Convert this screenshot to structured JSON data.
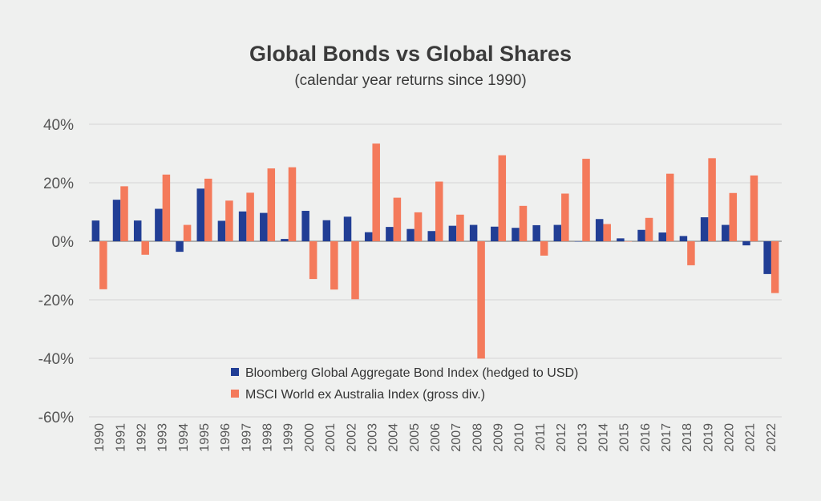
{
  "title": "Global Bonds vs Global Shares",
  "subtitle": "(calendar year returns since 1990)",
  "colors": {
    "background": "#eff0ef",
    "bond": "#213e95",
    "shares": "#f47a5b",
    "grid": "#d4d4d4",
    "text": "#555555"
  },
  "chart_data": {
    "type": "bar",
    "title": "Global Bonds vs Global Shares",
    "subtitle": "(calendar year returns since 1990)",
    "categories": [
      "1990",
      "1991",
      "1992",
      "1993",
      "1994",
      "1995",
      "1996",
      "1997",
      "1998",
      "1999",
      "2000",
      "2001",
      "2002",
      "2003",
      "2004",
      "2005",
      "2006",
      "2007",
      "2008",
      "2009",
      "2010",
      "2011",
      "2012",
      "2013",
      "2014",
      "2015",
      "2016",
      "2017",
      "2018",
      "2019",
      "2020",
      "2021",
      "2022"
    ],
    "series": [
      {
        "name": "Bloomberg Global Aggregate Bond Index (hedged to USD)",
        "color": "#213e95",
        "values": [
          7.1,
          14.2,
          7.1,
          11.1,
          -3.6,
          18.0,
          7.0,
          10.2,
          9.7,
          0.8,
          10.4,
          7.2,
          8.4,
          3.1,
          4.9,
          4.2,
          3.5,
          5.3,
          5.6,
          5.0,
          4.6,
          5.5,
          5.6,
          -0.1,
          7.6,
          1.0,
          3.9,
          3.0,
          1.8,
          8.2,
          5.6,
          -1.4,
          -11.2
        ]
      },
      {
        "name": "MSCI World ex Australia Index (gross div.)",
        "color": "#f47a5b",
        "values": [
          -16.4,
          18.8,
          -4.6,
          22.8,
          5.6,
          21.4,
          13.9,
          16.6,
          24.9,
          25.3,
          -12.9,
          -16.5,
          -19.8,
          33.4,
          14.9,
          9.9,
          20.4,
          9.1,
          -40.1,
          29.4,
          12.1,
          -4.9,
          16.3,
          28.2,
          5.9,
          0.0,
          8.0,
          23.1,
          -8.2,
          28.4,
          16.5,
          22.5,
          -17.7
        ]
      }
    ],
    "yticks": [
      "40%",
      "20%",
      "0%",
      "-20%",
      "-40%",
      "-60%"
    ],
    "ytick_values": [
      40,
      20,
      0,
      -20,
      -40,
      -60
    ],
    "ylim": [
      -60,
      40
    ],
    "grid": true,
    "legend_position": "bottom-center"
  }
}
